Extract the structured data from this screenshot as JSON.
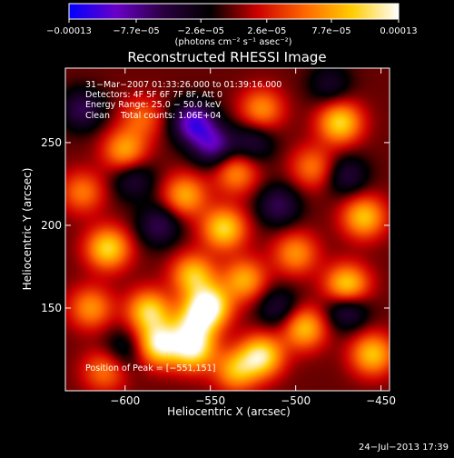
{
  "chart_data": {
    "type": "heatmap",
    "title": "Reconstructed RHESSI Image",
    "xlabel": "Heliocentric X (arcsec)",
    "ylabel": "Heliocentric Y (arcsec)",
    "xlim": [
      -635,
      -445
    ],
    "ylim": [
      100,
      295
    ],
    "x_ticks": [
      -600,
      -550,
      -500,
      -450
    ],
    "x_tick_labels": [
      "−600",
      "−550",
      "−500",
      "−450"
    ],
    "y_ticks": [
      150,
      200,
      250
    ],
    "y_tick_labels": [
      "150",
      "200",
      "250"
    ],
    "colorbar": {
      "min": -0.00013,
      "max": 0.00013,
      "ticks": [
        -0.00013,
        -7.7e-05,
        -2.6e-05,
        2.6e-05,
        7.7e-05,
        0.00013
      ],
      "tick_labels": [
        "−0.00013",
        "−7.7e−05",
        "−2.6e−05",
        "2.6e−05",
        "7.7e−05",
        "0.00013"
      ],
      "units_label": "(photons cm⁻² s⁻¹ asec⁻²)",
      "colors": [
        "#0000ff",
        "#6a00c8",
        "#2a0040",
        "#000000",
        "#cc0000",
        "#ff6600",
        "#ffcc00",
        "#ffffff"
      ]
    },
    "annotations": [
      "31−Mar−2007 01:33:26.000 to 01:39:16.000",
      "Detectors: 4F 5F 6F 7F 8F, Att 0",
      "Energy Range: 25.0 − 50.0 keV",
      "Clean    Total counts: 1.06E+04"
    ],
    "peak_label": "Position of Peak = [−551,151]",
    "peak_position": [
      -551,
      151
    ],
    "peak_value": 0.00013,
    "sources": [
      {
        "x": -551,
        "y": 151,
        "value": 0.00013
      },
      {
        "x": -580,
        "y": 128,
        "value": 0.00012
      },
      {
        "x": -560,
        "y": 125,
        "value": 0.00011
      },
      {
        "x": -520,
        "y": 121,
        "value": 0.00011
      },
      {
        "x": -470,
        "y": 163,
        "value": 0.00011
      },
      {
        "x": -586,
        "y": 148,
        "value": 0.0001
      },
      {
        "x": -610,
        "y": 186,
        "value": 0.0001
      },
      {
        "x": -542,
        "y": 198,
        "value": 0.0001
      },
      {
        "x": -474,
        "y": 262,
        "value": 0.0001
      },
      {
        "x": -530,
        "y": 167,
        "value": 8e-05
      },
      {
        "x": -560,
        "y": 170,
        "value": 9e-05
      },
      {
        "x": -495,
        "y": 138,
        "value": 9e-05
      },
      {
        "x": -455,
        "y": 122,
        "value": 9e-05
      },
      {
        "x": -600,
        "y": 245,
        "value": 8e-05
      },
      {
        "x": -565,
        "y": 218,
        "value": 8e-05
      },
      {
        "x": -535,
        "y": 232,
        "value": 7e-05
      },
      {
        "x": -500,
        "y": 183,
        "value": 7e-05
      },
      {
        "x": -460,
        "y": 205,
        "value": 9e-05
      },
      {
        "x": -520,
        "y": 270,
        "value": 7e-05
      },
      {
        "x": -620,
        "y": 150,
        "value": 7e-05
      },
      {
        "x": -625,
        "y": 220,
        "value": 6e-05
      },
      {
        "x": -490,
        "y": 235,
        "value": 6e-05
      },
      {
        "x": -612,
        "y": 112,
        "value": 6e-05
      },
      {
        "x": -560,
        "y": 140,
        "value": 8e-05
      },
      {
        "x": -535,
        "y": 112,
        "value": 8e-05
      },
      {
        "x": -590,
        "y": 265,
        "value": 5e-05
      },
      {
        "x": -560,
        "y": 262,
        "value": -0.0001
      },
      {
        "x": -548,
        "y": 248,
        "value": -8e-05
      },
      {
        "x": -510,
        "y": 212,
        "value": -6e-05
      },
      {
        "x": -470,
        "y": 150,
        "value": -7e-05
      },
      {
        "x": -580,
        "y": 200,
        "value": -6e-05
      },
      {
        "x": -625,
        "y": 270,
        "value": -6e-05
      },
      {
        "x": -510,
        "y": 150,
        "value": -5e-05
      },
      {
        "x": -595,
        "y": 228,
        "value": -5e-05
      },
      {
        "x": -470,
        "y": 230,
        "value": -5e-05
      },
      {
        "x": -480,
        "y": 285,
        "value": -4e-05
      },
      {
        "x": -600,
        "y": 125,
        "value": -4e-05
      },
      {
        "x": -525,
        "y": 250,
        "value": -5e-05
      }
    ],
    "grid": false,
    "legend": "colorbar-top"
  },
  "footer": {
    "timestamp": "24−Jul−2013 17:39"
  }
}
